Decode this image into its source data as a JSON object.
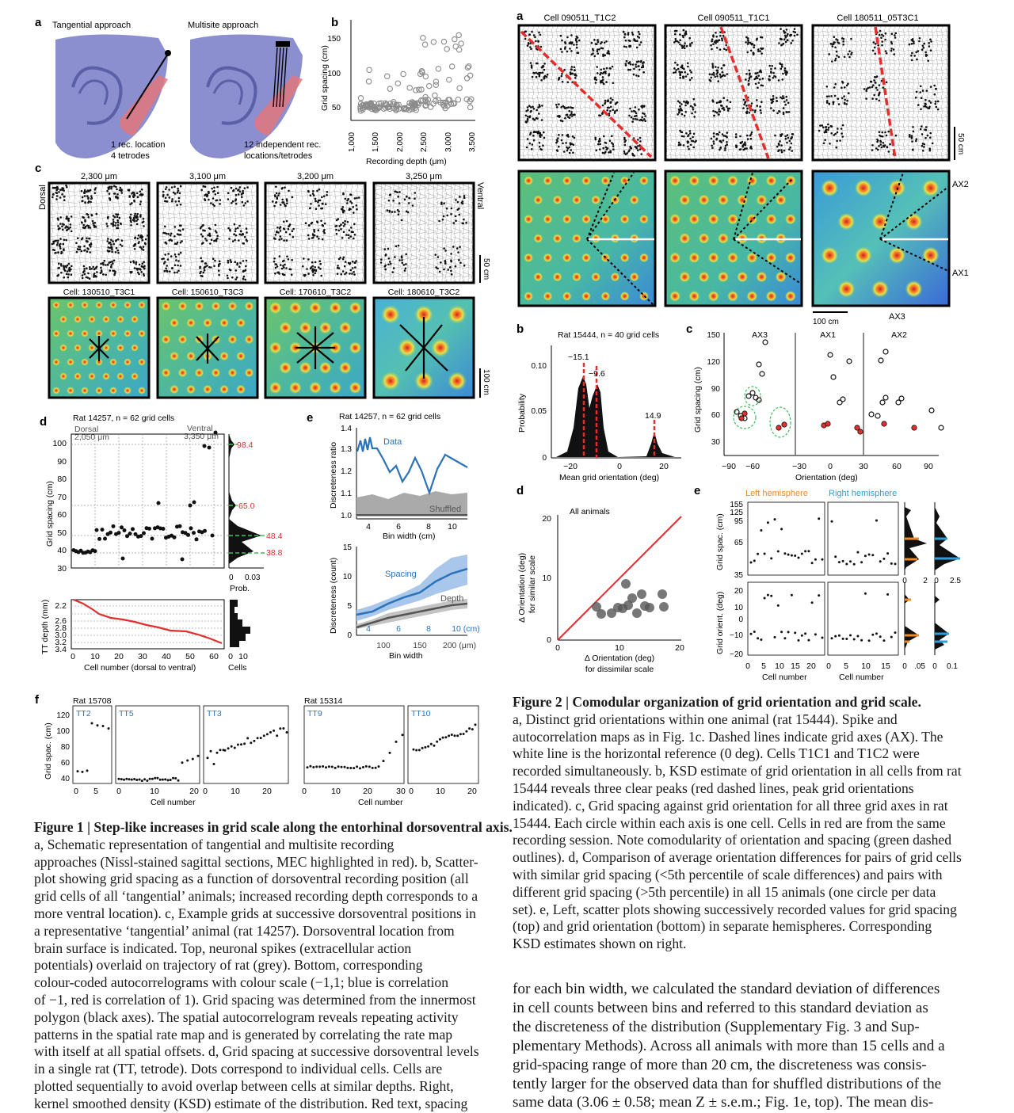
{
  "fig1": {
    "a": {
      "label": "a",
      "title_left": "Tangential approach",
      "title_right": "Multisite approach",
      "note_left": [
        "1 rec. location",
        "4 tetrodes"
      ],
      "note_right": [
        "12 independent rec.",
        "locations/tetrodes"
      ]
    },
    "b": {
      "label": "b",
      "xlabel": "Recording depth (μm)",
      "ylabel": "Grid spacing (cm)",
      "xticks": [
        "1,000",
        "1,500",
        "2,000",
        "2,500",
        "3,000",
        "3,500"
      ],
      "yticks": [
        "50",
        "100",
        "150"
      ]
    },
    "c": {
      "label": "c",
      "depths": [
        "2,300 μm",
        "3,100 μm",
        "3,200 μm",
        "3,250 μm"
      ],
      "cells": [
        "Cell: 130510_T3C1",
        "Cell: 150610_T3C3",
        "Cell: 170610_T3C2",
        "Cell: 180610_T3C2"
      ],
      "dorsal": "Dorsal",
      "ventral": "Ventral",
      "scale_top": "50 cm",
      "scale_bottom": "100 cm"
    },
    "d": {
      "label": "d",
      "title": "Rat 14257, n = 62 grid cells",
      "dorsal": "Dorsal",
      "dorsal_depth": "2,050 μm",
      "ventral": "Ventral",
      "ventral_depth": "3,350 μm",
      "ylabel": "Grid spacing (cm)",
      "yticks": [
        "30",
        "40",
        "50",
        "60",
        "70",
        "80",
        "90",
        "100"
      ],
      "peaks": [
        "98.4",
        "65.0",
        "48.4",
        "38.8"
      ],
      "prob_label": "Prob.",
      "prob_ticks": [
        "0",
        "0.03"
      ],
      "tt_ylabel": "TT depth (mm)",
      "tt_yticks": [
        "2.2",
        "2.6",
        "2.8",
        "3.0",
        "3.2",
        "3.4"
      ],
      "xlabel": "Cell number (dorsal to ventral)",
      "xticks": [
        "0",
        "10",
        "20",
        "30",
        "40",
        "50",
        "60"
      ],
      "cells_label": "Cells",
      "cells_ticks": [
        "0",
        "10"
      ]
    },
    "e": {
      "label": "e",
      "title": "Rat 14257, n = 62 grid cells",
      "ylabel1": "Discreteness ratio",
      "yticks1": [
        "1.0",
        "1.1",
        "1.2",
        "1.3",
        "1.4"
      ],
      "data_label": "Data",
      "shuffled_label": "Shuffled",
      "xlabel1": "Bin width (cm)",
      "xticks1": [
        "4",
        "6",
        "8",
        "10"
      ],
      "ylabel2": "Discreteness (count)",
      "yticks2": [
        "0",
        "5",
        "10",
        "15"
      ],
      "spacing_label": "Spacing",
      "depth_label": "Depth",
      "xticks2_cm": [
        "4",
        "6",
        "8",
        "10 (cm)"
      ],
      "xticks2_um": [
        "100",
        "150",
        "200 (μm)"
      ],
      "xlabel2": "Bin width"
    },
    "f": {
      "label": "f",
      "rat_a": "Rat 15708",
      "rat_b": "Rat 15314",
      "tts": [
        "TT2",
        "TT5",
        "TT3",
        "TT9",
        "TT10"
      ],
      "ylabel": "Grid spac. (cm)",
      "yticks": [
        "40",
        "60",
        "80",
        "100",
        "120"
      ],
      "xlabel": "Cell number"
    },
    "caption_title": "Figure 1 | Step-like increases in grid scale along the entorhinal dorsoventral axis.",
    "caption_lines": [
      "approaches (Nissl-stained sagittal sections, MEC highlighted in red). b, Scatter-",
      "plot showing grid spacing as a function of dorsoventral recording position (all",
      "grid cells of all ‘tangential’ animals; increased recording depth corresponds to a",
      "more ventral location). c, Example grids at successive dorsoventral positions in",
      "a representative ‘tangential’ animal (rat 14257). Dorsoventral location from",
      "brain surface is indicated. Top, neuronal spikes (extracellular action",
      "potentials) overlaid on trajectory of rat (grey). Bottom, corresponding",
      "colour-coded autocorrelograms with colour scale (−1,1; blue is correlation",
      "of −1, red is correlation of 1). Grid spacing was determined from the innermost",
      "polygon (black axes). The spatial autocorrelogram reveals repeating activity",
      "patterns in the spatial rate map and is generated by correlating the rate map",
      "with itself at all spatial offsets. d, Grid spacing at successive dorsoventral levels",
      "in a single rat (TT, tetrode). Dots correspond to individual cells. Cells are",
      "plotted sequentially to avoid overlap between cells at similar depths. Right,",
      "kernel smoothed density (KSD) estimate of the distribution. Red text, spacing"
    ],
    "caption_line0_rest": "a, Schematic representation of tangential and multisite recording"
  },
  "fig2": {
    "a": {
      "label": "a",
      "cells": [
        "Cell 090511_T1C2",
        "Cell 090511_T1C1",
        "Cell 180511_05T3C1"
      ],
      "scale_top": "50 cm",
      "scale_bottom": "100 cm",
      "axes": [
        "AX2",
        "AX1",
        "AX3"
      ]
    },
    "b": {
      "label": "b",
      "title": "Rat 15444, n = 40 grid cells",
      "ylabel": "Probability",
      "yticks": [
        "0",
        "0.05",
        "0.10"
      ],
      "xticks": [
        "−20",
        "0",
        "20"
      ],
      "xlabel": "Mean grid orientation (deg)",
      "peaks": [
        "−15.1",
        "−9.6",
        "14.9"
      ]
    },
    "c": {
      "label": "c",
      "ylabel": "Grid spacing (cm)",
      "yticks": [
        "30",
        "60",
        "90",
        "120",
        "150"
      ],
      "xticks": [
        "−90",
        "−60",
        "−30",
        "0",
        "30",
        "60",
        "90"
      ],
      "xlabel": "Orientation (deg)",
      "groups": [
        "AX3",
        "AX1",
        "AX2"
      ]
    },
    "d": {
      "label": "d",
      "title": "All animals",
      "ylabel": [
        "Δ Orientation (deg)",
        "for similar scale"
      ],
      "xlabel": [
        "Δ Orientation (deg)",
        "for dissimilar scale"
      ],
      "ticks": [
        "0",
        "10",
        "20"
      ]
    },
    "e": {
      "label": "e",
      "left": "Left hemisphere",
      "right": "Right hemisphere",
      "ylabel_top": "Grid spac. (cm)",
      "yticks_top": [
        "35",
        "65",
        "95",
        "125",
        "155"
      ],
      "ylabel_bottom": "Grid orient. (deg)",
      "yticks_bottom": [
        "−20",
        "−10",
        "0",
        "10",
        "20"
      ],
      "xticks_left": [
        "0",
        "5",
        "10",
        "15",
        "20"
      ],
      "xticks_right": [
        "0",
        "5",
        "10",
        "15"
      ],
      "xlabel": "Cell number",
      "ksd_top_left": [
        "0",
        "2"
      ],
      "ksd_top_right": [
        "0",
        "2.5"
      ],
      "ksd_bot_left": [
        "0",
        ".05"
      ],
      "ksd_bot_right": [
        "0",
        "0.1"
      ]
    },
    "caption_title": "Figure 2 | Comodular organization of grid orientation and grid scale.",
    "caption_lines": [
      "a, Distinct grid orientations within one animal (rat 15444). Spike and",
      "autocorrelation maps as in Fig. 1c. Dashed lines indicate grid axes (AX). The",
      "white line is the horizontal reference (0 deg). Cells T1C1 and T1C2 were",
      "recorded simultaneously. b, KSD estimate of grid orientation in all cells from rat",
      "15444 reveals three clear peaks (red dashed lines, peak grid orientations",
      "indicated). c, Grid spacing against grid orientation for all three grid axes in rat",
      "15444. Each circle within each axis is one cell. Cells in red are from the same",
      "recording session. Note comodularity of orientation and spacing (green dashed",
      "outlines). d, Comparison of average orientation differences for pairs of grid cells",
      "with similar grid spacing (<5th percentile of scale differences) and pairs with",
      "different grid spacing (>5th percentile) in all 15 animals (one circle per data",
      "set). e, Left, scatter plots showing successively recorded values for grid spacing",
      "(top) and grid orientation (bottom) in separate hemispheres. Corresponding",
      "KSD estimates shown on right."
    ]
  },
  "body_lines": [
    "for each bin width, we calculated the standard deviation of differences",
    "in cell counts between bins and referred to this standard deviation as",
    "the discreteness of the distribution (Supplementary Fig. 3 and Sup-",
    "plementary Methods). Across all animals with more than 15 cells and a",
    "grid-spacing range of more than 20 cm, the discreteness was consis-",
    "tently larger for the observed data than for shuffled distributions of the",
    "same data (3.06 ± 0.58; mean Z ± s.e.m.; Fig. 1e, top). The mean dis-"
  ],
  "colors": {
    "accent_red": "#e0302e",
    "blue": "#2c72b8",
    "orange": "#f08a24",
    "green": "#2fa36b",
    "jet_bg": "#5fbf6a"
  }
}
